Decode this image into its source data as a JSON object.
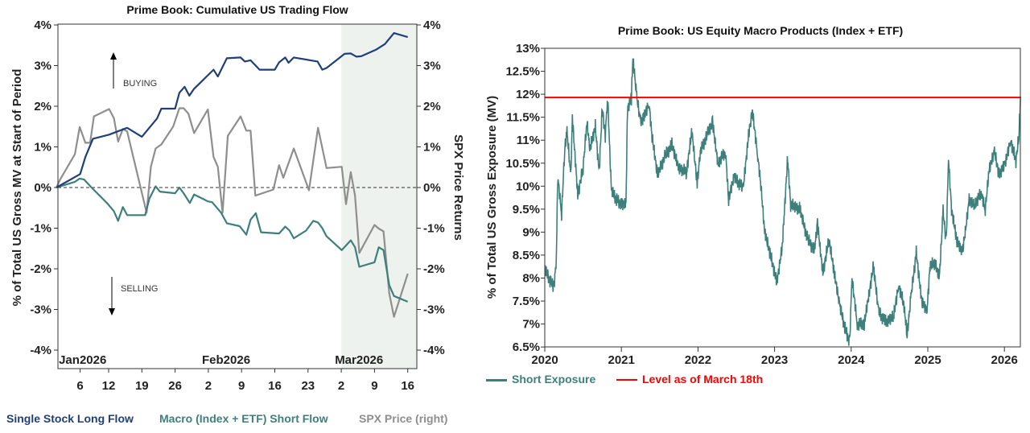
{
  "colors": {
    "long": "#1f3f7a",
    "macro": "#3d7f7b",
    "spx": "#8e8e8e",
    "red": "#ff0000",
    "shade": "#eef2ee"
  },
  "chart_data": [
    {
      "type": "line",
      "title": "Prime Book: Cumulative US Trading Flow",
      "ylabel": "% of Total US Gross MV at Start of Period",
      "y2label": "SPX Price Returns",
      "ylim": [
        -4,
        4
      ],
      "y2lim": [
        -4,
        4
      ],
      "yticks": [
        "-4%",
        "-3%",
        "-2%",
        "-1%",
        "0%",
        "1%",
        "2%",
        "3%",
        "4%"
      ],
      "x_unit": "day of 2026",
      "xticks": [
        {
          "day": 6,
          "label": "6"
        },
        {
          "day": 12,
          "label": "12"
        },
        {
          "day": 19,
          "label": "19"
        },
        {
          "day": 26,
          "label": "26"
        },
        {
          "day": 33,
          "label": "2"
        },
        {
          "day": 40,
          "label": "9"
        },
        {
          "day": 47,
          "label": "16"
        },
        {
          "day": 54,
          "label": "23"
        },
        {
          "day": 61,
          "label": "2"
        },
        {
          "day": 68,
          "label": "9"
        },
        {
          "day": 75,
          "label": "16"
        }
      ],
      "months": [
        {
          "day": 1,
          "label": "Jan2026"
        },
        {
          "day": 32,
          "label": "Feb2026"
        },
        {
          "day": 60,
          "label": "Mar2026"
        }
      ],
      "shaded_from_day": 61,
      "annotations": {
        "buying": "BUYING",
        "selling": "SELLING"
      },
      "series": [
        {
          "name": "Single Stock Long Flow",
          "axis": "left",
          "points": [
            [
              1,
              0
            ],
            [
              6,
              0.33
            ],
            [
              7.1,
              0.75
            ],
            [
              8.7,
              1.2
            ],
            [
              12.1,
              1.3
            ],
            [
              15.9,
              1.47
            ],
            [
              19,
              1.25
            ],
            [
              22.2,
              1.7
            ],
            [
              23.1,
              1.94
            ],
            [
              26,
              1.94
            ],
            [
              26.9,
              2.33
            ],
            [
              28,
              2.48
            ],
            [
              29,
              2.26
            ],
            [
              30,
              2.43
            ],
            [
              34.1,
              2.9
            ],
            [
              35,
              2.73
            ],
            [
              36.9,
              3.18
            ],
            [
              39.8,
              3.2
            ],
            [
              40.7,
              3.1
            ],
            [
              41.9,
              3.13
            ],
            [
              43.8,
              2.9
            ],
            [
              47,
              2.9
            ],
            [
              47.9,
              3.08
            ],
            [
              49.2,
              3.2
            ],
            [
              49.9,
              3.07
            ],
            [
              51,
              3.2
            ],
            [
              56,
              3.1
            ],
            [
              57,
              2.9
            ],
            [
              57.9,
              2.94
            ],
            [
              61.7,
              3.29
            ],
            [
              63,
              3.3
            ],
            [
              64.2,
              3.22
            ],
            [
              65.2,
              3.23
            ],
            [
              68.3,
              3.39
            ],
            [
              70.2,
              3.53
            ],
            [
              72.1,
              3.8
            ],
            [
              75,
              3.7
            ]
          ]
        },
        {
          "name": "Macro (Index + ETF) Short Flow",
          "axis": "left",
          "points": [
            [
              1,
              0
            ],
            [
              4.9,
              0.14
            ],
            [
              5.9,
              0.22
            ],
            [
              6.8,
              0.2
            ],
            [
              8.4,
              0
            ],
            [
              9.6,
              -0.14
            ],
            [
              11.8,
              -0.4
            ],
            [
              13.1,
              -0.58
            ],
            [
              14,
              -0.82
            ],
            [
              15,
              -0.48
            ],
            [
              15.9,
              -0.68
            ],
            [
              19.7,
              -0.68
            ],
            [
              20.6,
              -0.27
            ],
            [
              21.9,
              0.03
            ],
            [
              22.8,
              -0.1
            ],
            [
              26,
              -0.14
            ],
            [
              26.9,
              0
            ],
            [
              27.8,
              -0.14
            ],
            [
              29.1,
              -0.38
            ],
            [
              30,
              -0.17
            ],
            [
              32.9,
              -0.34
            ],
            [
              33.8,
              -0.36
            ],
            [
              35.7,
              -0.62
            ],
            [
              36.9,
              -0.88
            ],
            [
              39.6,
              -0.95
            ],
            [
              41,
              -1.16
            ],
            [
              41.9,
              -0.79
            ],
            [
              43,
              -0.63
            ],
            [
              44.1,
              -1.1
            ],
            [
              47.9,
              -1.13
            ],
            [
              49.2,
              -0.96
            ],
            [
              50.1,
              -1.06
            ],
            [
              51,
              -1.25
            ],
            [
              53.6,
              -1.06
            ],
            [
              55.1,
              -0.82
            ],
            [
              56.1,
              -0.86
            ],
            [
              57,
              -1
            ],
            [
              57.9,
              -1.2
            ],
            [
              61.1,
              -1.54
            ],
            [
              63,
              -1.3
            ],
            [
              63.9,
              -1.47
            ],
            [
              64.8,
              -1.95
            ],
            [
              68,
              -1.84
            ],
            [
              68.9,
              -1.47
            ],
            [
              69.9,
              -1.54
            ],
            [
              71.1,
              -2.4
            ],
            [
              72.1,
              -2.67
            ],
            [
              75,
              -2.81
            ]
          ]
        },
        {
          "name": "SPX Price (right)",
          "axis": "right",
          "points": [
            [
              1,
              0
            ],
            [
              1.8,
              0.2
            ],
            [
              4.9,
              0.82
            ],
            [
              5.9,
              1.49
            ],
            [
              7.1,
              1.1
            ],
            [
              8.1,
              1.1
            ],
            [
              8.9,
              1.75
            ],
            [
              12.1,
              1.93
            ],
            [
              13.1,
              1.71
            ],
            [
              14,
              1.13
            ],
            [
              15,
              1.44
            ],
            [
              15.9,
              1.38
            ],
            [
              20,
              -0.62
            ],
            [
              20.9,
              0.51
            ],
            [
              21.9,
              0.96
            ],
            [
              23.1,
              1.06
            ],
            [
              25.6,
              1.5
            ],
            [
              26.9,
              1.95
            ],
            [
              27.8,
              1.95
            ],
            [
              28.8,
              1.82
            ],
            [
              30,
              1.34
            ],
            [
              32.9,
              1.92
            ],
            [
              34.1,
              0.75
            ],
            [
              35,
              0.51
            ],
            [
              36,
              -0.62
            ],
            [
              37.1,
              1.27
            ],
            [
              39.8,
              1.75
            ],
            [
              41,
              1.4
            ],
            [
              41.9,
              1.4
            ],
            [
              42.9,
              -0.2
            ],
            [
              46.7,
              -0.05
            ],
            [
              47.9,
              0.55
            ],
            [
              48.8,
              0.24
            ],
            [
              51,
              0.96
            ],
            [
              54.2,
              -0.07
            ],
            [
              56.1,
              1.47
            ],
            [
              57.9,
              0.48
            ],
            [
              61.1,
              0.51
            ],
            [
              62,
              -0.41
            ],
            [
              63,
              0.38
            ],
            [
              63.9,
              -0.2
            ],
            [
              64.8,
              -1.61
            ],
            [
              68,
              -0.92
            ],
            [
              68.9,
              -1.01
            ],
            [
              69.9,
              -1.08
            ],
            [
              71.1,
              -2.6
            ],
            [
              72.1,
              -3.18
            ],
            [
              75,
              -2.12
            ]
          ]
        }
      ]
    },
    {
      "type": "line",
      "title": "Prime Book: US Equity Macro Products (Index + ETF)",
      "ylabel": "% of Total US Gross Exposure (MV)",
      "ylim": [
        6.5,
        13
      ],
      "yticks": [
        "6.5%",
        "7%",
        "7.5%",
        "8%",
        "8.5%",
        "9%",
        "9.5%",
        "10%",
        "10.5%",
        "11%",
        "11.5%",
        "12%",
        "12.5%",
        "13%"
      ],
      "xticks": [
        "2020",
        "2021",
        "2022",
        "2023",
        "2024",
        "2025",
        "2026"
      ],
      "reference_line": {
        "name": "Level as of March 18th",
        "value": 11.93
      },
      "series": [
        {
          "name": "Short Exposure",
          "points": [
            [
              2020,
              8.2
            ],
            [
              2020.08,
              7.9
            ],
            [
              2020.12,
              7.8
            ],
            [
              2020.15,
              8.4
            ],
            [
              2020.17,
              10.2
            ],
            [
              2020.22,
              9.4
            ],
            [
              2020.26,
              10.8
            ],
            [
              2020.29,
              11.2
            ],
            [
              2020.34,
              10.2
            ],
            [
              2020.36,
              11.5
            ],
            [
              2020.43,
              9.8
            ],
            [
              2020.5,
              10.4
            ],
            [
              2020.55,
              11.4
            ],
            [
              2020.59,
              10.8
            ],
            [
              2020.66,
              11.3
            ],
            [
              2020.71,
              10.3
            ],
            [
              2020.75,
              11.7
            ],
            [
              2020.79,
              11.1
            ],
            [
              2020.82,
              11.95
            ],
            [
              2020.87,
              9.9
            ],
            [
              2020.94,
              9.7
            ],
            [
              2021.01,
              9.6
            ],
            [
              2021.06,
              9.65
            ],
            [
              2021.08,
              11.7
            ],
            [
              2021.13,
              11.9
            ],
            [
              2021.15,
              12.8
            ],
            [
              2021.2,
              11.95
            ],
            [
              2021.25,
              11.4
            ],
            [
              2021.29,
              11.5
            ],
            [
              2021.36,
              11.8
            ],
            [
              2021.4,
              11.1
            ],
            [
              2021.47,
              10.25
            ],
            [
              2021.57,
              10.65
            ],
            [
              2021.66,
              10.9
            ],
            [
              2021.75,
              10.4
            ],
            [
              2021.85,
              10.3
            ],
            [
              2021.92,
              11.2
            ],
            [
              2021.99,
              10.05
            ],
            [
              2022.03,
              10.75
            ],
            [
              2022.13,
              11.15
            ],
            [
              2022.19,
              11.4
            ],
            [
              2022.26,
              10.5
            ],
            [
              2022.36,
              10.75
            ],
            [
              2022.4,
              9.7
            ],
            [
              2022.47,
              10.2
            ],
            [
              2022.59,
              9.95
            ],
            [
              2022.66,
              11.1
            ],
            [
              2022.71,
              11.65
            ],
            [
              2022.78,
              10.65
            ],
            [
              2022.82,
              10.05
            ],
            [
              2022.87,
              9.0
            ],
            [
              2022.94,
              8.55
            ],
            [
              2023.03,
              7.9
            ],
            [
              2023.1,
              8.7
            ],
            [
              2023.17,
              10.6
            ],
            [
              2023.21,
              9.6
            ],
            [
              2023.33,
              9.5
            ],
            [
              2023.43,
              8.85
            ],
            [
              2023.52,
              8.6
            ],
            [
              2023.56,
              9.2
            ],
            [
              2023.63,
              8.1
            ],
            [
              2023.71,
              8.85
            ],
            [
              2023.78,
              8.1
            ],
            [
              2023.85,
              7.4
            ],
            [
              2023.92,
              6.9
            ],
            [
              2023.98,
              6.6
            ],
            [
              2024.01,
              8.0
            ],
            [
              2024.08,
              7.0
            ],
            [
              2024.17,
              7.0
            ],
            [
              2024.29,
              8.25
            ],
            [
              2024.36,
              7.25
            ],
            [
              2024.45,
              7.05
            ],
            [
              2024.55,
              7.15
            ],
            [
              2024.62,
              7.85
            ],
            [
              2024.69,
              7.4
            ],
            [
              2024.73,
              6.75
            ],
            [
              2024.78,
              7.6
            ],
            [
              2024.85,
              8.55
            ],
            [
              2024.92,
              7.5
            ],
            [
              2024.99,
              7.3
            ],
            [
              2025.03,
              8.3
            ],
            [
              2025.1,
              8.3
            ],
            [
              2025.15,
              8.0
            ],
            [
              2025.2,
              9.45
            ],
            [
              2025.24,
              8.8
            ],
            [
              2025.27,
              10.6
            ],
            [
              2025.31,
              9.5
            ],
            [
              2025.38,
              8.8
            ],
            [
              2025.45,
              8.55
            ],
            [
              2025.49,
              9.0
            ],
            [
              2025.54,
              9.7
            ],
            [
              2025.61,
              9.6
            ],
            [
              2025.7,
              9.85
            ],
            [
              2025.75,
              9.5
            ],
            [
              2025.8,
              10.35
            ],
            [
              2025.87,
              10.75
            ],
            [
              2025.93,
              10.25
            ],
            [
              2026.01,
              10.5
            ],
            [
              2026.08,
              11.0
            ],
            [
              2026.15,
              10.55
            ],
            [
              2026.19,
              11.1
            ],
            [
              2026.21,
              11.95
            ]
          ]
        }
      ]
    }
  ]
}
